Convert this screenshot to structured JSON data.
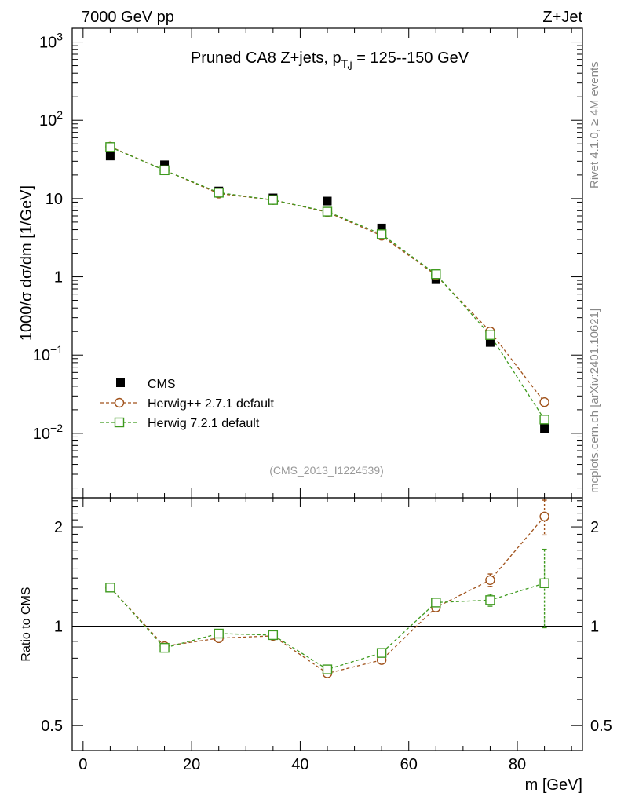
{
  "header": {
    "left": "7000 GeV pp",
    "right": "Z+Jet"
  },
  "side": {
    "top": "Rivet 4.1.0, ≥ 4M events",
    "bottom": "mcplots.cern.ch [arXiv:2401.10621]"
  },
  "colors": {
    "cms": "#000000",
    "herwigpp": "#a0521b",
    "herwig7": "#3e9a1e",
    "watermark": "#999999"
  },
  "chart_data": [
    {
      "type": "scatter",
      "panel": "main",
      "title": "Pruned CA8 Z+jets, p_T,j = 125--150 GeV",
      "title_main": "Pruned CA8 Z+jets, p",
      "title_sub": "T,j",
      "title_tail": " = 125--150 GeV",
      "ylabel": "1000/σ  dσ/dm [1/GeV]",
      "yscale": "log",
      "ylim": [
        0.0015,
        1500
      ],
      "xlim": [
        -2,
        92
      ],
      "y_ticks": [
        {
          "value": 1000,
          "base": "10",
          "exp": "3"
        },
        {
          "value": 100,
          "base": "10",
          "exp": "2"
        },
        {
          "value": 10,
          "base": "10",
          "exp": ""
        },
        {
          "value": 1,
          "base": "1",
          "exp": ""
        },
        {
          "value": 0.1,
          "base": "10",
          "exp": "−1"
        },
        {
          "value": 0.01,
          "base": "10",
          "exp": "−2"
        }
      ],
      "watermark": "(CMS_2013_I1224539)",
      "x": [
        5,
        15,
        25,
        35,
        45,
        55,
        65,
        75,
        85
      ],
      "series": [
        {
          "name": "CMS",
          "marker": "filled-square",
          "values": [
            35,
            27,
            12.5,
            10.2,
            9.3,
            4.2,
            0.92,
            0.145,
            0.0115
          ]
        },
        {
          "name": "Herwig++ 2.7.1 default",
          "marker": "open-circle",
          "values": [
            46,
            23,
            11.6,
            9.6,
            6.7,
            3.35,
            1.05,
            0.2,
            0.025
          ]
        },
        {
          "name": "Herwig 7.2.1 default",
          "marker": "open-square",
          "values": [
            45.5,
            23,
            11.9,
            9.6,
            6.8,
            3.5,
            1.08,
            0.18,
            0.015
          ]
        }
      ],
      "legend": {
        "placement": "bottom-left",
        "entries": [
          "CMS",
          "Herwig++ 2.7.1 default",
          "Herwig 7.2.1 default"
        ]
      }
    },
    {
      "type": "scatter",
      "panel": "ratio",
      "ylabel": "Ratio to CMS",
      "xlabel": "m [GeV]",
      "yscale": "log",
      "ylim": [
        0.42,
        2.45
      ],
      "xlim": [
        -2,
        92
      ],
      "x_ticks": [
        0,
        20,
        40,
        60,
        80
      ],
      "y_ticks": [
        {
          "value": 2,
          "label": "2"
        },
        {
          "value": 1,
          "label": "1"
        },
        {
          "value": 0.5,
          "label": "0.5"
        }
      ],
      "reference_line": 1,
      "x": [
        5,
        15,
        25,
        35,
        45,
        55,
        65,
        75,
        85
      ],
      "series": [
        {
          "name": "Herwig++ 2.7.1 default",
          "marker": "open-circle",
          "values": [
            1.31,
            0.87,
            0.92,
            0.935,
            0.72,
            0.79,
            1.14,
            1.38,
            2.15
          ],
          "errors": [
            0.0,
            0.0,
            0.0,
            0.0,
            0.0,
            0.0,
            0.0,
            0.06,
            0.26
          ]
        },
        {
          "name": "Herwig 7.2.1 default",
          "marker": "open-square",
          "values": [
            1.31,
            0.86,
            0.95,
            0.94,
            0.74,
            0.83,
            1.18,
            1.2,
            1.35
          ],
          "errors": [
            0.0,
            0.0,
            0.0,
            0.0,
            0.0,
            0.0,
            0.0,
            0.05,
            0.36
          ]
        }
      ]
    }
  ]
}
